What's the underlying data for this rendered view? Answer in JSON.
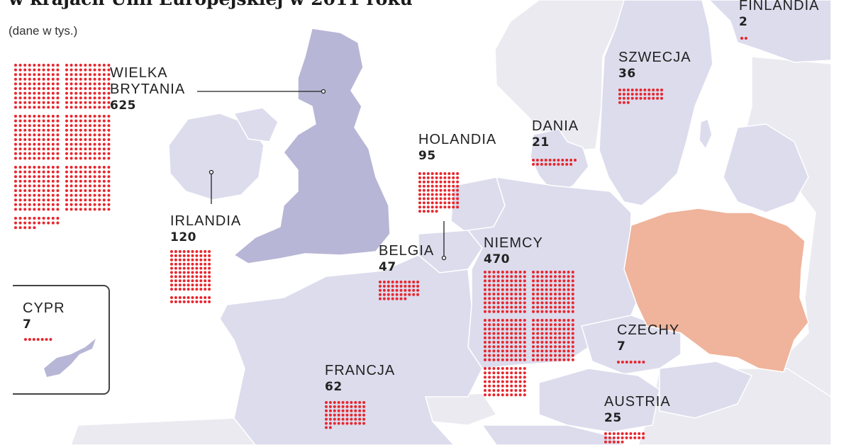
{
  "title": {
    "headline": "w krajach Unii Europejskiej w 2011 roku",
    "subtitle": "(dane w tys.)"
  },
  "colors": {
    "sea": "#ffffff",
    "other_country": "#eaeaf0",
    "eu_country": "#dcdced",
    "uk": "#b7b6d6",
    "poland": "#efb49b",
    "dot": "#e8262d",
    "border": "#ffffff"
  },
  "countries": [
    {
      "key": "finlandia",
      "name": "FINLANDIA",
      "value": "2",
      "count": 2
    },
    {
      "key": "szwecja",
      "name": "SZWECJA",
      "value": "36",
      "count": 36
    },
    {
      "key": "wielka_brytania",
      "name": "WIELKA BRYTANIA",
      "name_line1": "WIELKA",
      "name_line2": "BRYTANIA",
      "value": "625",
      "count": 625
    },
    {
      "key": "dania",
      "name": "DANIA",
      "value": "21",
      "count": 21
    },
    {
      "key": "holandia",
      "name": "HOLANDIA",
      "value": "95",
      "count": 95
    },
    {
      "key": "irlandia",
      "name": "IRLANDIA",
      "value": "120",
      "count": 120
    },
    {
      "key": "belgia",
      "name": "BELGIA",
      "value": "47",
      "count": 47
    },
    {
      "key": "niemcy",
      "name": "NIEMCY",
      "value": "470",
      "count": 470
    },
    {
      "key": "cypr",
      "name": "CYPR",
      "value": "7",
      "count": 7
    },
    {
      "key": "czechy",
      "name": "CZECHY",
      "value": "7",
      "count": 7
    },
    {
      "key": "francja",
      "name": "FRANCJA",
      "value": "62",
      "count": 62
    },
    {
      "key": "austria",
      "name": "AUSTRIA",
      "value": "25",
      "count": 25
    }
  ]
}
